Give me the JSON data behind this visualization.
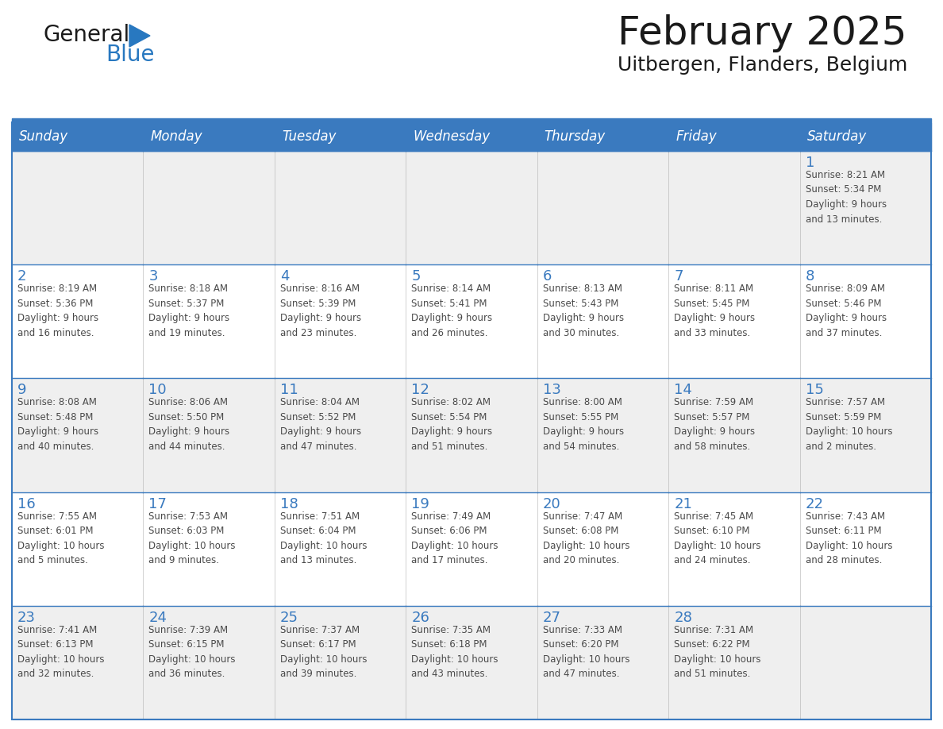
{
  "title": "February 2025",
  "subtitle": "Uitbergen, Flanders, Belgium",
  "days_of_week": [
    "Sunday",
    "Monday",
    "Tuesday",
    "Wednesday",
    "Thursday",
    "Friday",
    "Saturday"
  ],
  "header_bg": "#3a7abf",
  "header_text": "#ffffff",
  "cell_bg_odd": "#efefef",
  "cell_bg_even": "#ffffff",
  "cell_border": "#3a7abf",
  "day_number_color": "#3a7abf",
  "text_color": "#4a4a4a",
  "title_color": "#1a1a1a",
  "logo_black": "#1a1a1a",
  "logo_blue": "#2878c0",
  "separator_color": "#3a7abf",
  "calendar_data": [
    [
      {
        "day": null,
        "info": null
      },
      {
        "day": null,
        "info": null
      },
      {
        "day": null,
        "info": null
      },
      {
        "day": null,
        "info": null
      },
      {
        "day": null,
        "info": null
      },
      {
        "day": null,
        "info": null
      },
      {
        "day": 1,
        "info": "Sunrise: 8:21 AM\nSunset: 5:34 PM\nDaylight: 9 hours\nand 13 minutes."
      }
    ],
    [
      {
        "day": 2,
        "info": "Sunrise: 8:19 AM\nSunset: 5:36 PM\nDaylight: 9 hours\nand 16 minutes."
      },
      {
        "day": 3,
        "info": "Sunrise: 8:18 AM\nSunset: 5:37 PM\nDaylight: 9 hours\nand 19 minutes."
      },
      {
        "day": 4,
        "info": "Sunrise: 8:16 AM\nSunset: 5:39 PM\nDaylight: 9 hours\nand 23 minutes."
      },
      {
        "day": 5,
        "info": "Sunrise: 8:14 AM\nSunset: 5:41 PM\nDaylight: 9 hours\nand 26 minutes."
      },
      {
        "day": 6,
        "info": "Sunrise: 8:13 AM\nSunset: 5:43 PM\nDaylight: 9 hours\nand 30 minutes."
      },
      {
        "day": 7,
        "info": "Sunrise: 8:11 AM\nSunset: 5:45 PM\nDaylight: 9 hours\nand 33 minutes."
      },
      {
        "day": 8,
        "info": "Sunrise: 8:09 AM\nSunset: 5:46 PM\nDaylight: 9 hours\nand 37 minutes."
      }
    ],
    [
      {
        "day": 9,
        "info": "Sunrise: 8:08 AM\nSunset: 5:48 PM\nDaylight: 9 hours\nand 40 minutes."
      },
      {
        "day": 10,
        "info": "Sunrise: 8:06 AM\nSunset: 5:50 PM\nDaylight: 9 hours\nand 44 minutes."
      },
      {
        "day": 11,
        "info": "Sunrise: 8:04 AM\nSunset: 5:52 PM\nDaylight: 9 hours\nand 47 minutes."
      },
      {
        "day": 12,
        "info": "Sunrise: 8:02 AM\nSunset: 5:54 PM\nDaylight: 9 hours\nand 51 minutes."
      },
      {
        "day": 13,
        "info": "Sunrise: 8:00 AM\nSunset: 5:55 PM\nDaylight: 9 hours\nand 54 minutes."
      },
      {
        "day": 14,
        "info": "Sunrise: 7:59 AM\nSunset: 5:57 PM\nDaylight: 9 hours\nand 58 minutes."
      },
      {
        "day": 15,
        "info": "Sunrise: 7:57 AM\nSunset: 5:59 PM\nDaylight: 10 hours\nand 2 minutes."
      }
    ],
    [
      {
        "day": 16,
        "info": "Sunrise: 7:55 AM\nSunset: 6:01 PM\nDaylight: 10 hours\nand 5 minutes."
      },
      {
        "day": 17,
        "info": "Sunrise: 7:53 AM\nSunset: 6:03 PM\nDaylight: 10 hours\nand 9 minutes."
      },
      {
        "day": 18,
        "info": "Sunrise: 7:51 AM\nSunset: 6:04 PM\nDaylight: 10 hours\nand 13 minutes."
      },
      {
        "day": 19,
        "info": "Sunrise: 7:49 AM\nSunset: 6:06 PM\nDaylight: 10 hours\nand 17 minutes."
      },
      {
        "day": 20,
        "info": "Sunrise: 7:47 AM\nSunset: 6:08 PM\nDaylight: 10 hours\nand 20 minutes."
      },
      {
        "day": 21,
        "info": "Sunrise: 7:45 AM\nSunset: 6:10 PM\nDaylight: 10 hours\nand 24 minutes."
      },
      {
        "day": 22,
        "info": "Sunrise: 7:43 AM\nSunset: 6:11 PM\nDaylight: 10 hours\nand 28 minutes."
      }
    ],
    [
      {
        "day": 23,
        "info": "Sunrise: 7:41 AM\nSunset: 6:13 PM\nDaylight: 10 hours\nand 32 minutes."
      },
      {
        "day": 24,
        "info": "Sunrise: 7:39 AM\nSunset: 6:15 PM\nDaylight: 10 hours\nand 36 minutes."
      },
      {
        "day": 25,
        "info": "Sunrise: 7:37 AM\nSunset: 6:17 PM\nDaylight: 10 hours\nand 39 minutes."
      },
      {
        "day": 26,
        "info": "Sunrise: 7:35 AM\nSunset: 6:18 PM\nDaylight: 10 hours\nand 43 minutes."
      },
      {
        "day": 27,
        "info": "Sunrise: 7:33 AM\nSunset: 6:20 PM\nDaylight: 10 hours\nand 47 minutes."
      },
      {
        "day": 28,
        "info": "Sunrise: 7:31 AM\nSunset: 6:22 PM\nDaylight: 10 hours\nand 51 minutes."
      },
      {
        "day": null,
        "info": null
      }
    ]
  ],
  "fig_width": 11.88,
  "fig_height": 9.18,
  "dpi": 100
}
